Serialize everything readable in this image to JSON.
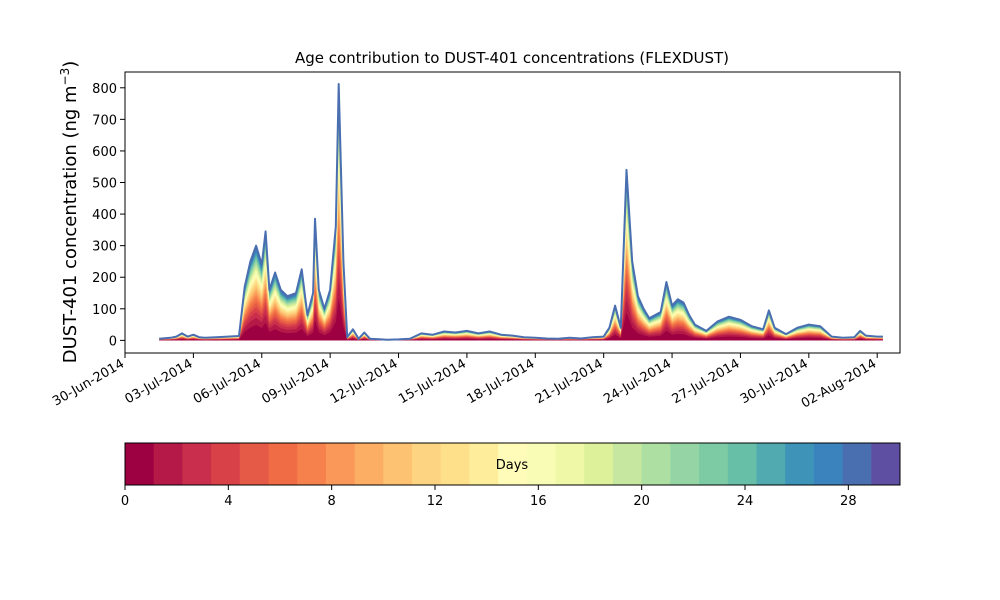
{
  "chart_data": {
    "type": "area",
    "title": "Age contribution to DUST-401 concentrations (FLEXDUST)",
    "ylabel_main": "DUST-401 concentration (ng m",
    "ylabel_exp": "−3",
    "ylabel_close": ")",
    "xlabel": "",
    "ylim": [
      -40,
      850
    ],
    "yticks": [
      0,
      100,
      200,
      300,
      400,
      500,
      600,
      700,
      800
    ],
    "xlim": [
      "2014-06-30T00:00",
      "2014-08-03T00:00"
    ],
    "xticks": [
      {
        "date": "2014-06-30",
        "label": "30-Jun-2014"
      },
      {
        "date": "2014-07-03",
        "label": "03-Jul-2014"
      },
      {
        "date": "2014-07-06",
        "label": "06-Jul-2014"
      },
      {
        "date": "2014-07-09",
        "label": "09-Jul-2014"
      },
      {
        "date": "2014-07-12",
        "label": "12-Jul-2014"
      },
      {
        "date": "2014-07-15",
        "label": "15-Jul-2014"
      },
      {
        "date": "2014-07-18",
        "label": "18-Jul-2014"
      },
      {
        "date": "2014-07-21",
        "label": "21-Jul-2014"
      },
      {
        "date": "2014-07-24",
        "label": "24-Jul-2014"
      },
      {
        "date": "2014-07-27",
        "label": "27-Jul-2014"
      },
      {
        "date": "2014-07-30",
        "label": "30-Jul-2014"
      },
      {
        "date": "2014-08-02",
        "label": "02-Aug-2014"
      }
    ],
    "total_series": [
      [
        "2014-07-01T12:00",
        5
      ],
      [
        "2014-07-02T00:00",
        8
      ],
      [
        "2014-07-02T06:00",
        12
      ],
      [
        "2014-07-02T12:00",
        22
      ],
      [
        "2014-07-02T18:00",
        12
      ],
      [
        "2014-07-03T00:00",
        18
      ],
      [
        "2014-07-03T06:00",
        10
      ],
      [
        "2014-07-03T12:00",
        8
      ],
      [
        "2014-07-04T00:00",
        10
      ],
      [
        "2014-07-04T12:00",
        12
      ],
      [
        "2014-07-05T00:00",
        14
      ],
      [
        "2014-07-05T06:00",
        170
      ],
      [
        "2014-07-05T12:00",
        250
      ],
      [
        "2014-07-05T18:00",
        300
      ],
      [
        "2014-07-06T00:00",
        240
      ],
      [
        "2014-07-06T04:00",
        345
      ],
      [
        "2014-07-06T08:00",
        160
      ],
      [
        "2014-07-06T14:00",
        215
      ],
      [
        "2014-07-06T20:00",
        160
      ],
      [
        "2014-07-07T03:00",
        140
      ],
      [
        "2014-07-07T12:00",
        150
      ],
      [
        "2014-07-07T18:00",
        225
      ],
      [
        "2014-07-08T00:00",
        80
      ],
      [
        "2014-07-08T06:00",
        150
      ],
      [
        "2014-07-08T08:00",
        385
      ],
      [
        "2014-07-08T12:00",
        160
      ],
      [
        "2014-07-08T18:00",
        100
      ],
      [
        "2014-07-09T00:00",
        160
      ],
      [
        "2014-07-09T06:00",
        360
      ],
      [
        "2014-07-09T09:00",
        812
      ],
      [
        "2014-07-09T14:00",
        250
      ],
      [
        "2014-07-09T18:00",
        10
      ],
      [
        "2014-07-10T00:00",
        35
      ],
      [
        "2014-07-10T06:00",
        5
      ],
      [
        "2014-07-10T12:00",
        25
      ],
      [
        "2014-07-10T18:00",
        5
      ],
      [
        "2014-07-11T12:00",
        2
      ],
      [
        "2014-07-12T00:00",
        3
      ],
      [
        "2014-07-12T12:00",
        5
      ],
      [
        "2014-07-13T00:00",
        22
      ],
      [
        "2014-07-13T12:00",
        18
      ],
      [
        "2014-07-14T00:00",
        28
      ],
      [
        "2014-07-14T12:00",
        25
      ],
      [
        "2014-07-15T00:00",
        30
      ],
      [
        "2014-07-15T12:00",
        22
      ],
      [
        "2014-07-16T00:00",
        28
      ],
      [
        "2014-07-16T12:00",
        18
      ],
      [
        "2014-07-17T00:00",
        15
      ],
      [
        "2014-07-17T12:00",
        10
      ],
      [
        "2014-07-18T00:00",
        8
      ],
      [
        "2014-07-18T12:00",
        6
      ],
      [
        "2014-07-19T00:00",
        5
      ],
      [
        "2014-07-19T12:00",
        8
      ],
      [
        "2014-07-20T00:00",
        6
      ],
      [
        "2014-07-20T12:00",
        10
      ],
      [
        "2014-07-21T00:00",
        12
      ],
      [
        "2014-07-21T06:00",
        40
      ],
      [
        "2014-07-21T12:00",
        110
      ],
      [
        "2014-07-21T18:00",
        40
      ],
      [
        "2014-07-22T00:00",
        540
      ],
      [
        "2014-07-22T06:00",
        250
      ],
      [
        "2014-07-22T12:00",
        140
      ],
      [
        "2014-07-22T18:00",
        100
      ],
      [
        "2014-07-23T00:00",
        70
      ],
      [
        "2014-07-23T12:00",
        90
      ],
      [
        "2014-07-23T18:00",
        185
      ],
      [
        "2014-07-24T00:00",
        110
      ],
      [
        "2014-07-24T06:00",
        130
      ],
      [
        "2014-07-24T12:00",
        120
      ],
      [
        "2014-07-24T18:00",
        80
      ],
      [
        "2014-07-25T00:00",
        50
      ],
      [
        "2014-07-25T12:00",
        30
      ],
      [
        "2014-07-26T00:00",
        60
      ],
      [
        "2014-07-26T12:00",
        75
      ],
      [
        "2014-07-27T00:00",
        65
      ],
      [
        "2014-07-27T12:00",
        45
      ],
      [
        "2014-07-28T00:00",
        35
      ],
      [
        "2014-07-28T06:00",
        95
      ],
      [
        "2014-07-28T12:00",
        40
      ],
      [
        "2014-07-29T00:00",
        20
      ],
      [
        "2014-07-29T12:00",
        40
      ],
      [
        "2014-07-30T00:00",
        50
      ],
      [
        "2014-07-30T12:00",
        45
      ],
      [
        "2014-07-31T00:00",
        12
      ],
      [
        "2014-07-31T12:00",
        8
      ],
      [
        "2014-08-01T00:00",
        10
      ],
      [
        "2014-08-01T06:00",
        30
      ],
      [
        "2014-08-01T12:00",
        15
      ],
      [
        "2014-08-02T00:00",
        12
      ],
      [
        "2014-08-02T06:00",
        12
      ]
    ],
    "colorbar": {
      "label": "Days",
      "range": [
        0,
        30
      ],
      "ticks": [
        0,
        4,
        8,
        12,
        16,
        20,
        24,
        28
      ],
      "colors": [
        "#9e0142",
        "#b41947",
        "#c92f4c",
        "#d94148",
        "#e55a47",
        "#f06c45",
        "#f6814c",
        "#f99858",
        "#fcaf64",
        "#fdc272",
        "#fdd481",
        "#fee08b",
        "#feee9c",
        "#fffbb8",
        "#f9fcb4",
        "#eef8a6",
        "#ddf19a",
        "#c5e79f",
        "#addea2",
        "#95d4a4",
        "#7ccba5",
        "#66bfa6",
        "#51aaaf",
        "#3d94b8",
        "#3b83bc",
        "#4a6fb0",
        "#5e4fa2"
      ]
    }
  }
}
